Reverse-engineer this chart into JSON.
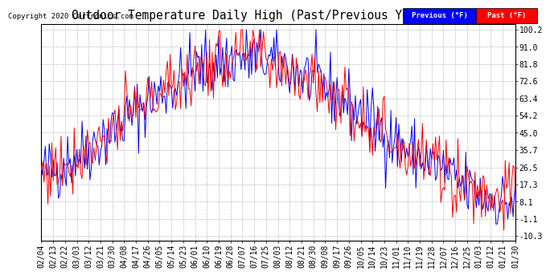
{
  "title": "Outdoor Temperature Daily High (Past/Previous Year) 20200204",
  "copyright": "Copyright 2020 Cartronics.com",
  "ylabel_ticks": [
    -10.3,
    -1.1,
    8.1,
    17.3,
    26.5,
    35.7,
    45.0,
    54.2,
    63.4,
    72.6,
    81.8,
    91.0,
    100.2
  ],
  "ylim": [
    -13.0,
    103.0
  ],
  "legend_labels": [
    "Previous (°F)",
    "Past (°F)"
  ],
  "legend_colors": [
    "#0000ff",
    "#ff0000"
  ],
  "background_color": "#ffffff",
  "plot_bg_color": "#ffffff",
  "grid_color": "#999999",
  "title_fontsize": 10.5,
  "tick_fontsize": 7,
  "copyright_fontsize": 6.5,
  "x_labels": [
    "02/04",
    "02/13",
    "02/22",
    "03/03",
    "03/12",
    "03/21",
    "03/30",
    "04/08",
    "04/17",
    "04/26",
    "05/05",
    "05/14",
    "05/23",
    "06/01",
    "06/10",
    "06/19",
    "06/28",
    "07/07",
    "07/16",
    "07/25",
    "08/03",
    "08/12",
    "08/21",
    "08/30",
    "09/08",
    "09/17",
    "09/26",
    "10/05",
    "10/14",
    "10/23",
    "11/01",
    "11/10",
    "11/19",
    "11/28",
    "12/07",
    "12/16",
    "12/25",
    "01/03",
    "01/12",
    "01/21",
    "01/30"
  ],
  "n_days": 362,
  "line_width": 0.7
}
